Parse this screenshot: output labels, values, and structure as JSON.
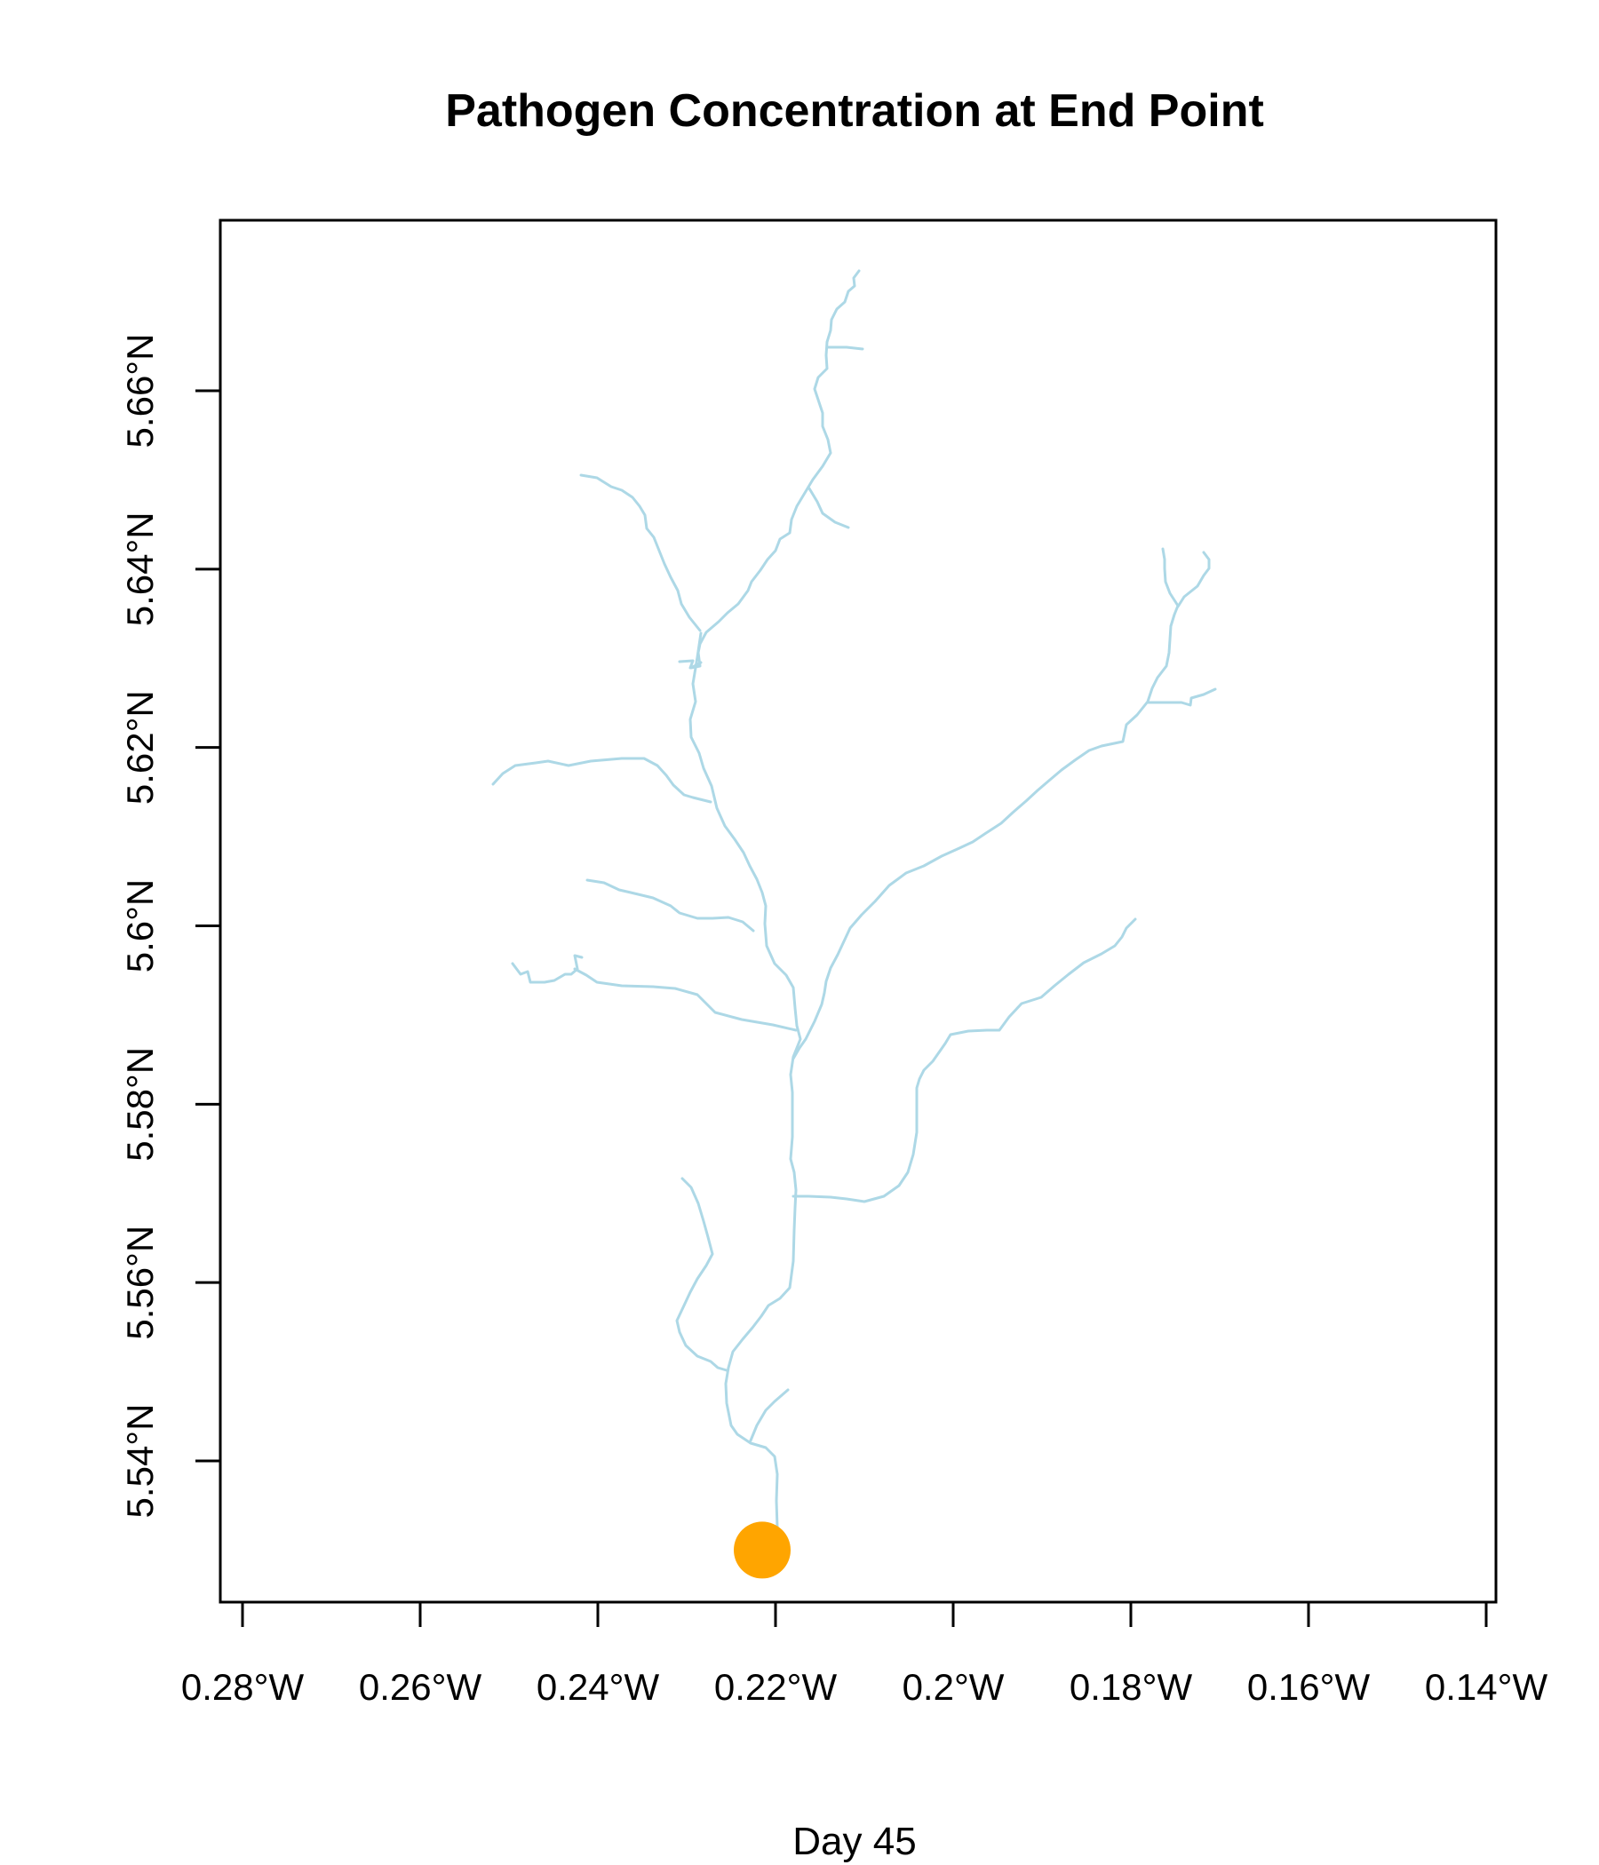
{
  "title": "Pathogen Concentration at End Point",
  "subtitle": "Day 45",
  "colors": {
    "river": "#add8e6",
    "point": "#ffa500",
    "axis": "#000000"
  },
  "x_axis": {
    "ticks": [
      {
        "value": -0.28,
        "label": "0.28°W"
      },
      {
        "value": -0.26,
        "label": "0.26°W"
      },
      {
        "value": -0.24,
        "label": "0.24°W"
      },
      {
        "value": -0.22,
        "label": "0.22°W"
      },
      {
        "value": -0.2,
        "label": "0.2°W"
      },
      {
        "value": -0.18,
        "label": "0.18°W"
      },
      {
        "value": -0.16,
        "label": "0.16°W"
      },
      {
        "value": -0.14,
        "label": "0.14°W"
      }
    ]
  },
  "y_axis": {
    "ticks": [
      {
        "value": 5.54,
        "label": "5.54°N"
      },
      {
        "value": 5.56,
        "label": "5.56°N"
      },
      {
        "value": 5.58,
        "label": "5.58°N"
      },
      {
        "value": 5.6,
        "label": "5.6°N"
      },
      {
        "value": 5.62,
        "label": "5.62°N"
      },
      {
        "value": 5.64,
        "label": "5.64°N"
      },
      {
        "value": 5.66,
        "label": "5.66°N"
      }
    ]
  },
  "end_point": {
    "lon": -0.2215,
    "lat": 5.53
  }
}
